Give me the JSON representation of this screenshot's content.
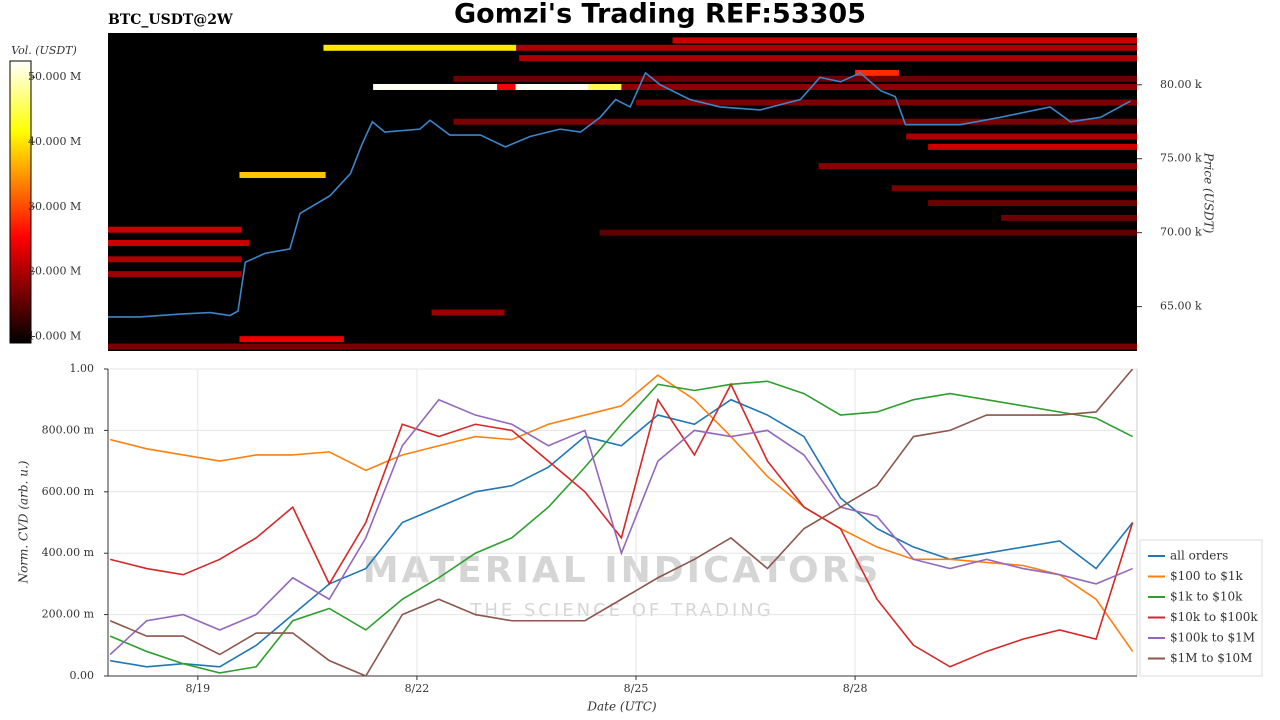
{
  "title": "Gomzi's Trading REF:53305",
  "watermark": [
    "MATERIAL INDICATORS",
    "THE SCIENCE OF TRADING"
  ],
  "chart_data": [
    {
      "type": "heatmap",
      "subtitle": "BTC_USDT@2W",
      "y_label": "Price (USDT)",
      "color_label": "Vol. (USDT)",
      "xlim": [
        17.77,
        31.86
      ],
      "ylim": [
        62000,
        83500
      ],
      "yticks": [
        {
          "value": 65000,
          "label": "65.00 k"
        },
        {
          "value": 70000,
          "label": "70.00 k"
        },
        {
          "value": 75000,
          "label": "75.00 k"
        },
        {
          "value": 80000,
          "label": "80.00 k"
        }
      ],
      "colorlim": [
        9000000,
        52500000
      ],
      "colorticks": [
        {
          "value": 10000000,
          "label": "10.000 M"
        },
        {
          "value": 20000000,
          "label": "20.000 M"
        },
        {
          "value": 30000000,
          "label": "30.000 M"
        },
        {
          "value": 40000000,
          "label": "40.000 M"
        },
        {
          "value": 50000000,
          "label": "50.000 M"
        }
      ],
      "bands": [
        {
          "price": 82500,
          "x0": 20.72,
          "x1": 23.36,
          "volume": 40000000
        },
        {
          "price": 82500,
          "x0": 23.36,
          "x1": 31.86,
          "volume": 20000000
        },
        {
          "price": 83000,
          "x0": 25.5,
          "x1": 31.86,
          "volume": 22000000
        },
        {
          "price": 81800,
          "x0": 23.4,
          "x1": 31.86,
          "volume": 20000000
        },
        {
          "price": 80800,
          "x0": 28.0,
          "x1": 28.6,
          "volume": 28000000
        },
        {
          "price": 80400,
          "x0": 22.5,
          "x1": 31.86,
          "volume": 16000000
        },
        {
          "price": 79850,
          "x0": 24.8,
          "x1": 31.86,
          "volume": 18000000
        },
        {
          "price": 79850,
          "x0": 21.4,
          "x1": 23.1,
          "volume": 52000000
        },
        {
          "price": 79850,
          "x0": 23.1,
          "x1": 23.35,
          "volume": 25000000
        },
        {
          "price": 79850,
          "x0": 23.35,
          "x1": 24.35,
          "volume": 52000000
        },
        {
          "price": 79850,
          "x0": 24.35,
          "x1": 24.8,
          "volume": 45000000
        },
        {
          "price": 78800,
          "x0": 25.0,
          "x1": 31.86,
          "volume": 17000000
        },
        {
          "price": 77500,
          "x0": 22.5,
          "x1": 31.86,
          "volume": 17000000
        },
        {
          "price": 76500,
          "x0": 28.7,
          "x1": 31.86,
          "volume": 20000000
        },
        {
          "price": 75800,
          "x0": 29.0,
          "x1": 31.86,
          "volume": 22000000
        },
        {
          "price": 74500,
          "x0": 27.5,
          "x1": 31.86,
          "volume": 18000000
        },
        {
          "price": 73900,
          "x0": 19.57,
          "x1": 20.75,
          "volume": 38000000
        },
        {
          "price": 73000,
          "x0": 28.5,
          "x1": 31.86,
          "volume": 17000000
        },
        {
          "price": 72000,
          "x0": 29.0,
          "x1": 31.86,
          "volume": 16000000
        },
        {
          "price": 71000,
          "x0": 30.0,
          "x1": 31.86,
          "volume": 16000000
        },
        {
          "price": 70200,
          "x0": 17.77,
          "x1": 19.6,
          "volume": 22000000
        },
        {
          "price": 70000,
          "x0": 24.5,
          "x1": 31.86,
          "volume": 15000000
        },
        {
          "price": 69300,
          "x0": 17.77,
          "x1": 19.7,
          "volume": 22000000
        },
        {
          "price": 68200,
          "x0": 17.77,
          "x1": 19.6,
          "volume": 20000000
        },
        {
          "price": 67200,
          "x0": 17.77,
          "x1": 19.6,
          "volume": 19000000
        },
        {
          "price": 64600,
          "x0": 22.2,
          "x1": 23.2,
          "volume": 19000000
        },
        {
          "price": 62800,
          "x0": 19.57,
          "x1": 21.0,
          "volume": 24000000
        },
        {
          "price": 62300,
          "x0": 17.77,
          "x1": 31.86,
          "volume": 17000000
        }
      ],
      "series": [
        {
          "color": "#3a86c8",
          "x": [
            17.77,
            18.21,
            18.76,
            19.17,
            19.44,
            19.55,
            19.65,
            19.92,
            20.26,
            20.4,
            20.81,
            21.09,
            21.25,
            21.39,
            21.56,
            22.04,
            22.18,
            22.45,
            22.87,
            23.21,
            23.55,
            23.96,
            24.24,
            24.51,
            24.72,
            24.92,
            25.13,
            25.33,
            25.74,
            26.15,
            26.7,
            27.25,
            27.52,
            27.8,
            28.07,
            28.35,
            28.55,
            28.69,
            29.44,
            29.99,
            30.67,
            30.95,
            31.36,
            31.77
          ],
          "values": [
            64300,
            64300,
            64500,
            64600,
            64400,
            64700,
            68000,
            68600,
            68900,
            71300,
            72500,
            74000,
            76000,
            77500,
            76800,
            77000,
            77600,
            76600,
            76600,
            75800,
            76500,
            77000,
            76800,
            77800,
            79000,
            78500,
            80800,
            80000,
            79000,
            78500,
            78300,
            79000,
            80500,
            80200,
            80800,
            79600,
            79200,
            77300,
            77300,
            77800,
            78500,
            77500,
            77800,
            78900
          ]
        }
      ]
    },
    {
      "type": "line",
      "x_label": "Date (UTC)",
      "y_label": "Norm. CVD (arb. u.)",
      "xlim": [
        17.77,
        31.86
      ],
      "ylim": [
        0,
        1
      ],
      "xticks": [
        {
          "value": 19,
          "label": "8/19"
        },
        {
          "value": 22,
          "label": "8/22"
        },
        {
          "value": 25,
          "label": "8/25"
        },
        {
          "value": 28,
          "label": "8/28"
        }
      ],
      "yticks": [
        {
          "value": 0,
          "label": "0.00"
        },
        {
          "value": 0.2,
          "label": "200.00 m"
        },
        {
          "value": 0.4,
          "label": "400.00 m"
        },
        {
          "value": 0.6,
          "label": "600.00 m"
        },
        {
          "value": 0.8,
          "label": "800.00 m"
        },
        {
          "value": 1,
          "label": "1.00"
        }
      ],
      "grid": true,
      "legend": "lower right",
      "x": [
        17.8,
        18.3,
        18.8,
        19.3,
        19.8,
        20.3,
        20.8,
        21.3,
        21.8,
        22.3,
        22.8,
        23.3,
        23.8,
        24.3,
        24.8,
        25.3,
        25.8,
        26.3,
        26.8,
        27.3,
        27.8,
        28.3,
        28.8,
        29.3,
        29.8,
        30.3,
        30.8,
        31.3,
        31.8
      ],
      "series": [
        {
          "name": "all orders",
          "color": "#1f77b4",
          "values": [
            0.05,
            0.03,
            0.04,
            0.03,
            0.1,
            0.2,
            0.3,
            0.35,
            0.5,
            0.55,
            0.6,
            0.62,
            0.68,
            0.78,
            0.75,
            0.85,
            0.82,
            0.9,
            0.85,
            0.78,
            0.58,
            0.48,
            0.42,
            0.38,
            0.4,
            0.42,
            0.44,
            0.35,
            0.5
          ]
        },
        {
          "name": "$100 to $1k",
          "color": "#ff7f0e",
          "values": [
            0.77,
            0.74,
            0.72,
            0.7,
            0.72,
            0.72,
            0.73,
            0.67,
            0.72,
            0.75,
            0.78,
            0.77,
            0.82,
            0.85,
            0.88,
            0.98,
            0.9,
            0.78,
            0.65,
            0.55,
            0.48,
            0.42,
            0.38,
            0.38,
            0.37,
            0.36,
            0.33,
            0.25,
            0.08
          ]
        },
        {
          "name": "$1k to $10k",
          "color": "#2ca02c",
          "values": [
            0.13,
            0.08,
            0.04,
            0.01,
            0.03,
            0.18,
            0.22,
            0.15,
            0.25,
            0.32,
            0.4,
            0.45,
            0.55,
            0.68,
            0.82,
            0.95,
            0.93,
            0.95,
            0.96,
            0.92,
            0.85,
            0.86,
            0.9,
            0.92,
            0.9,
            0.88,
            0.86,
            0.84,
            0.78
          ]
        },
        {
          "name": "$10k to $100k",
          "color": "#d62728",
          "values": [
            0.38,
            0.35,
            0.33,
            0.38,
            0.45,
            0.55,
            0.3,
            0.5,
            0.82,
            0.78,
            0.82,
            0.8,
            0.7,
            0.6,
            0.45,
            0.9,
            0.72,
            0.95,
            0.7,
            0.55,
            0.48,
            0.25,
            0.1,
            0.03,
            0.08,
            0.12,
            0.15,
            0.12,
            0.5
          ]
        },
        {
          "name": "$100k to $1M",
          "color": "#9467bd",
          "values": [
            0.07,
            0.18,
            0.2,
            0.15,
            0.2,
            0.32,
            0.25,
            0.45,
            0.75,
            0.9,
            0.85,
            0.82,
            0.75,
            0.8,
            0.4,
            0.7,
            0.8,
            0.78,
            0.8,
            0.72,
            0.55,
            0.52,
            0.38,
            0.35,
            0.38,
            0.35,
            0.33,
            0.3,
            0.35
          ]
        },
        {
          "name": "$1M to $10M",
          "color": "#8c564b",
          "values": [
            0.18,
            0.13,
            0.13,
            0.07,
            0.14,
            0.14,
            0.05,
            0,
            0.2,
            0.25,
            0.2,
            0.18,
            0.18,
            0.18,
            0.25,
            0.32,
            0.38,
            0.45,
            0.35,
            0.48,
            0.55,
            0.62,
            0.78,
            0.8,
            0.85,
            0.85,
            0.85,
            0.86,
            1.0
          ]
        }
      ]
    }
  ]
}
